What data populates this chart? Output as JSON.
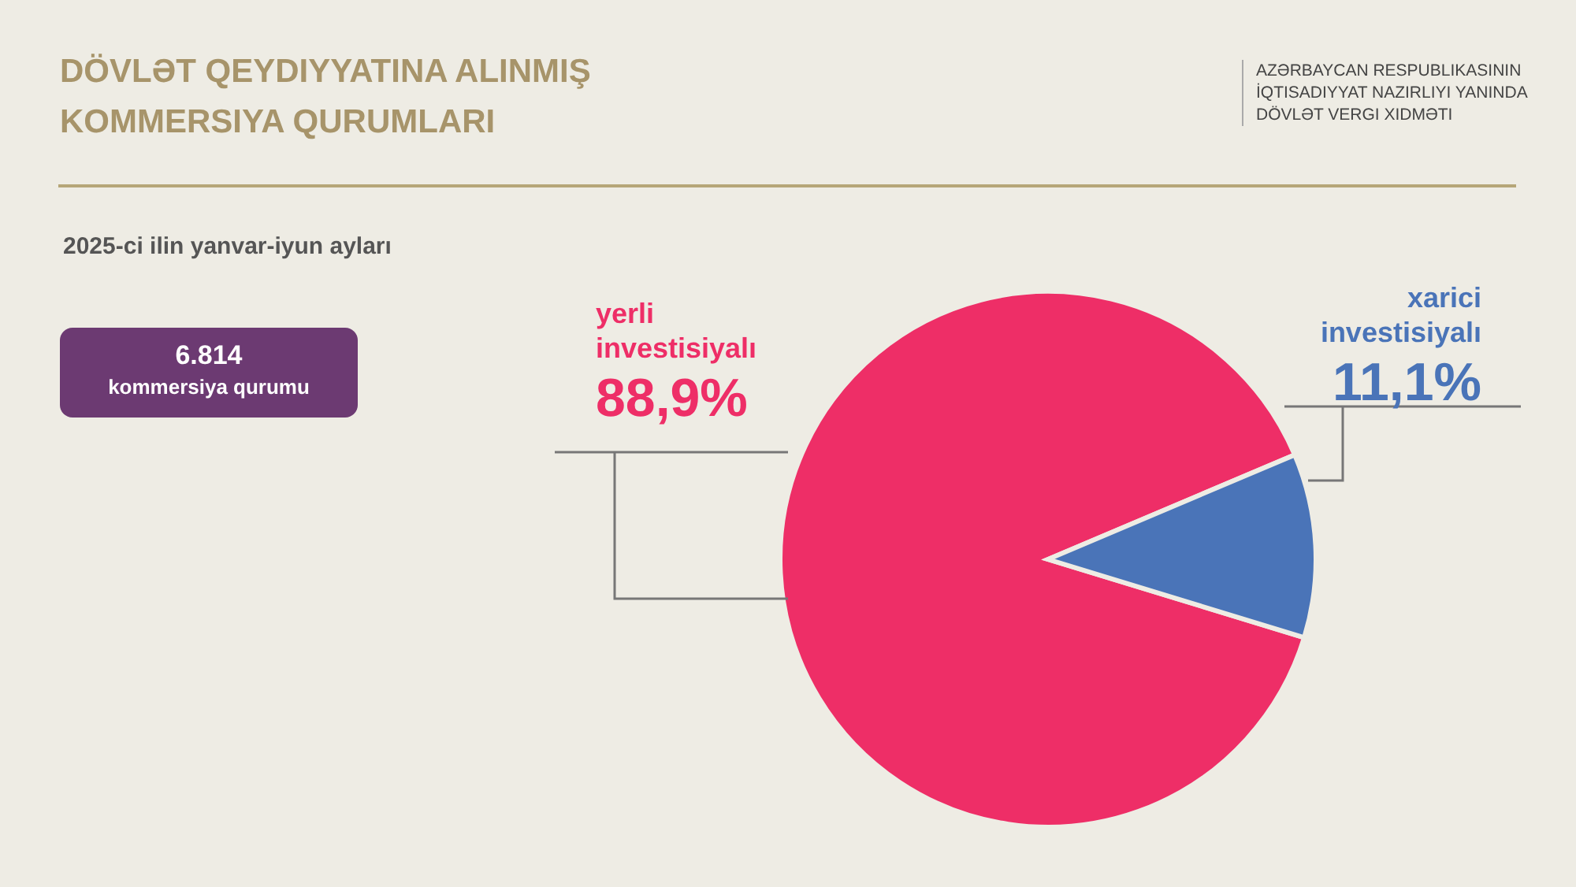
{
  "chart_data": {
    "type": "pie",
    "title": "DÖVLƏT QEYDIYYATINA ALINMIŞ KOMMERSIYA QURUMLARI",
    "subtitle": "2025-ci ilin yanvar-iyun ayları",
    "categories": [
      "yerli investisiyalı",
      "xarici investisiyalı"
    ],
    "values": [
      88.9,
      11.1
    ],
    "colors": [
      "#ee2e67",
      "#4a74b8"
    ],
    "value_labels": [
      "88,9%",
      "11,1%"
    ],
    "annotations": [
      "6.814",
      "kommersiya qurumu",
      "AZƏRBAYCAN RESPUBLIKASININ İQTISADIYYAT NAZIRLIYI YANINDA DÖVLƏT VERGI XIDMƏTI"
    ]
  }
}
